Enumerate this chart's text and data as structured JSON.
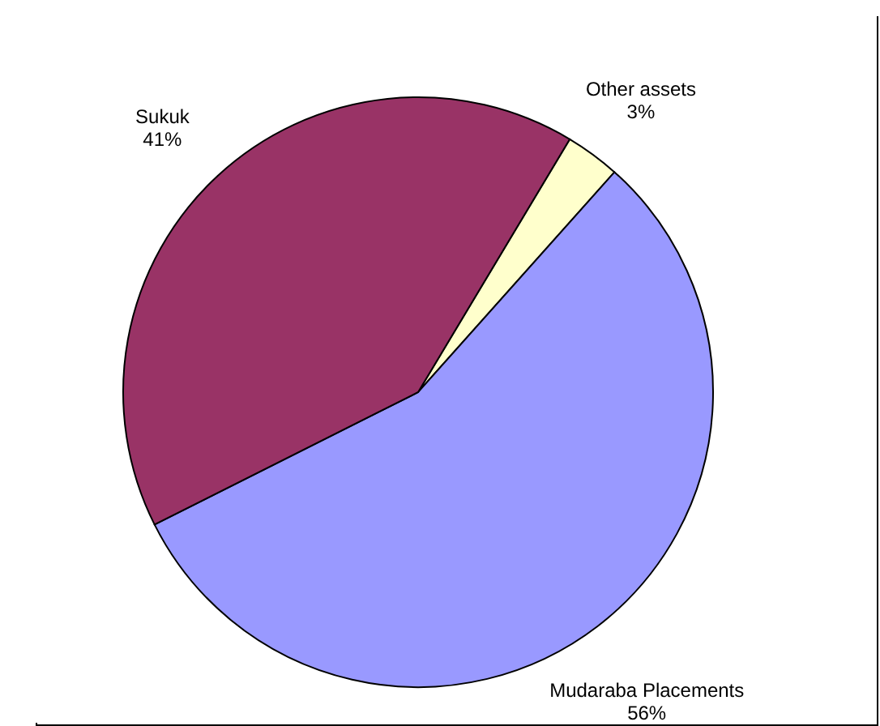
{
  "chart_data": {
    "type": "pie",
    "categories": [
      "Other assets",
      "Mudaraba Placements",
      "Sukuk"
    ],
    "values": [
      3,
      56,
      41
    ],
    "colors": [
      "#ffffcc",
      "#9999ff",
      "#993366"
    ],
    "value_labels": [
      "3%",
      "56%",
      "41%"
    ]
  }
}
